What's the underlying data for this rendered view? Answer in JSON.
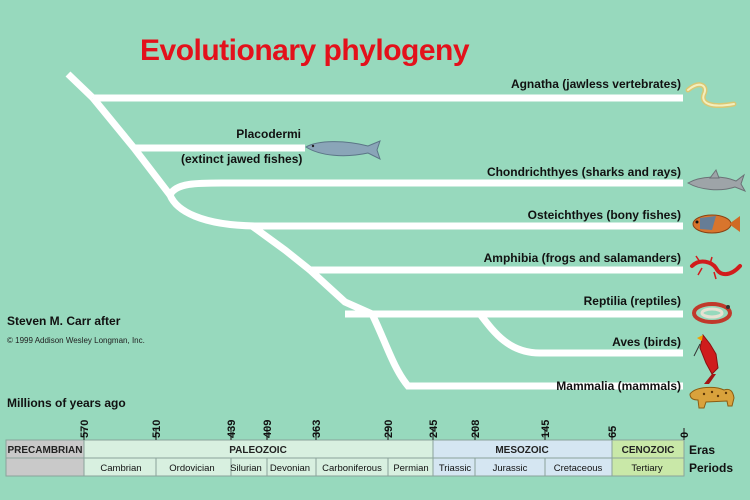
{
  "title": "Evolutionary phylogeny",
  "credit": "Steven M. Carr after",
  "copyright": "© 1999 Addison Wesley Longman, Inc.",
  "axis_label": "Millions of years ago",
  "tick_values": [
    "570",
    "510",
    "439",
    "409",
    "363",
    "290",
    "245",
    "208",
    "145",
    "65",
    "0"
  ],
  "taxa": [
    "Agnatha (jawless vertebrates)",
    "Chondrichthyes (sharks and rays)",
    "Osteichthyes (bony fishes)",
    "Amphibia (frogs and salamanders)",
    "Reptilia (reptiles)",
    "Aves (birds)",
    "Mammalia (mammals)"
  ],
  "placodermi": {
    "name": "Placodermi",
    "note": "(extinct jawed fishes)"
  },
  "eras": [
    "PRECAMBRIAN",
    "PALEOZOIC",
    "MESOZOIC",
    "CENOZOIC"
  ],
  "periods": [
    "Cambrian",
    "Ordovician",
    "Silurian",
    "Devonian",
    "Carboniferous",
    "Permian",
    "Triassic",
    "Jurassic",
    "Cretaceous",
    "Tertiary"
  ],
  "row_labels": {
    "eras": "Eras",
    "periods": "Periods"
  },
  "colors": {
    "background": "#97d9bd",
    "title": "#e3111b",
    "branch": "#ffffff",
    "paleozoic": "#d8f0e0",
    "mesozoic": "#d5e6f2",
    "cenozoic": "#c9e8a8",
    "precambrian": "#c9c9c9"
  },
  "icons": [
    "eel-icon",
    "placoderm-fish-icon",
    "shark-icon",
    "bony-fish-icon",
    "salamander-icon",
    "snake-icon",
    "cardinal-bird-icon",
    "big-cat-icon"
  ]
}
